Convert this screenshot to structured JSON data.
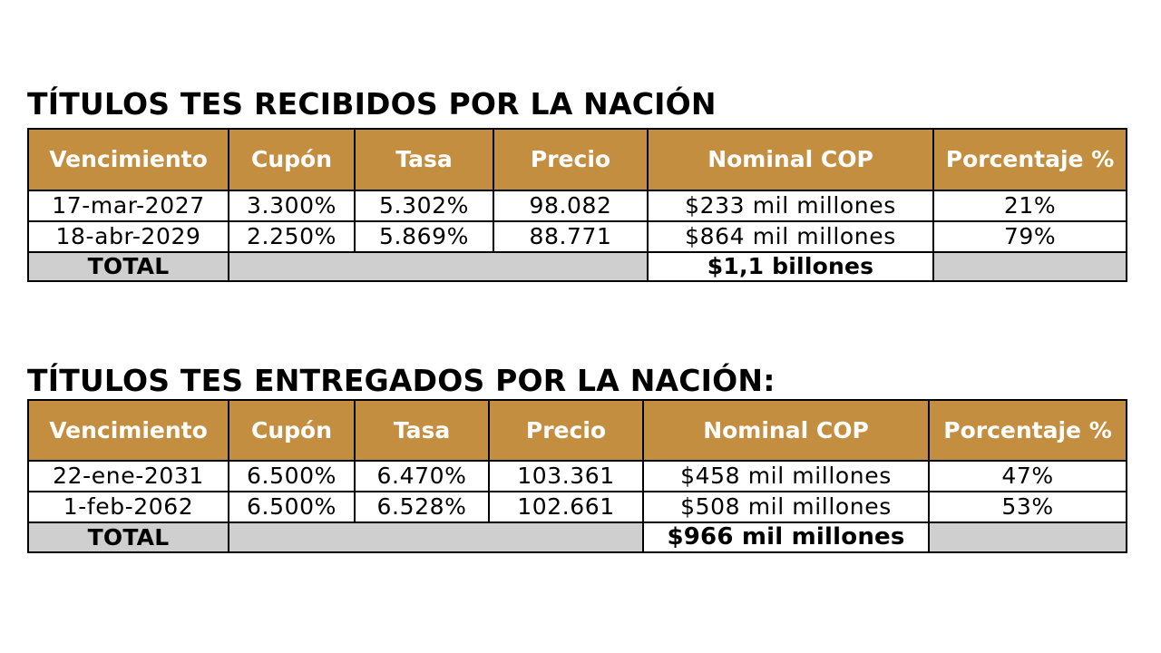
{
  "received": {
    "title": "TÍTULOS TES RECIBIDOS POR LA NACIÓN",
    "headers": [
      "Vencimiento",
      "Cupón",
      "Tasa",
      "Precio",
      "Nominal COP",
      "Porcentaje %"
    ],
    "rows": [
      [
        "17-mar-2027",
        "3.300%",
        "5.302%",
        "98.082",
        "$233 mil millones",
        "21%"
      ],
      [
        "18-abr-2029",
        "2.250%",
        "5.869%",
        "88.771",
        "$864 mil millones",
        "79%"
      ]
    ],
    "total_label": "TOTAL",
    "total_value": "$1,1 billones"
  },
  "delivered": {
    "title": "TÍTULOS TES ENTREGADOS POR LA NACIÓN:",
    "headers": [
      "Vencimiento",
      "Cupón",
      "Tasa",
      "Precio",
      "Nominal COP",
      "Porcentaje %"
    ],
    "rows": [
      [
        "22-ene-2031",
        "6.500%",
        "6.470%",
        "103.361",
        "$458 mil millones",
        "47%"
      ],
      [
        "1-feb-2062",
        "6.500%",
        "6.528%",
        "102.661",
        "$508 mil millones",
        "53%"
      ]
    ],
    "total_label": "TOTAL",
    "total_value": "$966 mil millones"
  },
  "colors": {
    "header_background": "#c38e3f",
    "header_text": "#ffffff",
    "total_row_background": "#cfcfcf"
  }
}
